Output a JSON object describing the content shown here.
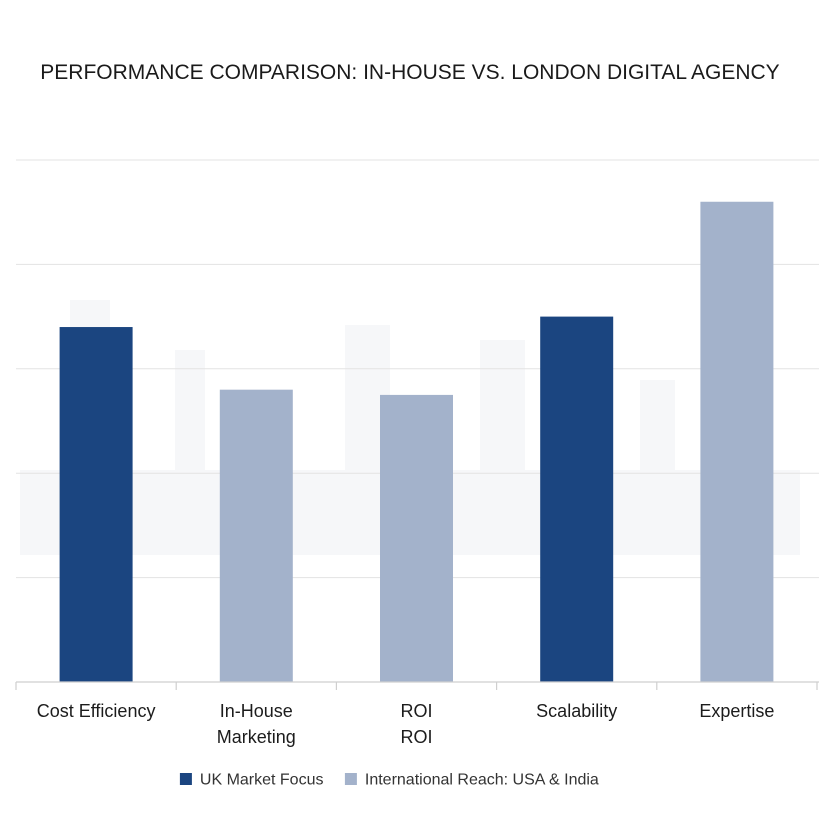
{
  "chart_data": {
    "type": "bar",
    "title": "PERFORMANCE COMPARISON: IN-HOUSE VS. LONDON DIGITAL AGENCY",
    "xlabel": "",
    "ylabel": "",
    "ylim": [
      0,
      100
    ],
    "grid": true,
    "legend_position": "bottom",
    "categories": [
      [
        "Cost Efficiency"
      ],
      [
        "In-House",
        "Marketing"
      ],
      [
        "ROI",
        "ROI"
      ],
      [
        "Scalability"
      ],
      [
        "Expertise"
      ]
    ],
    "series": [
      {
        "name": "UK Market Focus",
        "color": "#1b4580"
      },
      {
        "name": "International Reach: USA & India",
        "color": "#a3b2cb"
      }
    ],
    "bars": [
      {
        "category_index": 0,
        "series_index": 0,
        "value": 68
      },
      {
        "category_index": 1,
        "series_index": 1,
        "value": 56
      },
      {
        "category_index": 2,
        "series_index": 1,
        "value": 55
      },
      {
        "category_index": 3,
        "series_index": 0,
        "value": 70
      },
      {
        "category_index": 4,
        "series_index": 1,
        "value": 92
      }
    ]
  }
}
